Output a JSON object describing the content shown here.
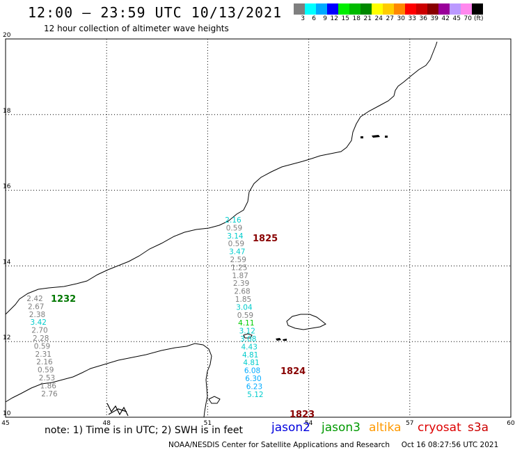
{
  "title": "12:00 – 23:59 UTC 10/13/2021",
  "subtitle": "12 hour collection of altimeter wave heights",
  "scale": {
    "colors": [
      "#7f7f7f",
      "#00ffff",
      "#00aaff",
      "#0000ff",
      "#00ee00",
      "#00bb00",
      "#008800",
      "#ffff00",
      "#ffcc00",
      "#ff8800",
      "#ff0000",
      "#cc0000",
      "#880000",
      "#990099",
      "#bb99ff",
      "#ff88ee",
      "#000000"
    ],
    "labels": [
      "3",
      "6",
      "9",
      "12",
      "15",
      "18",
      "21",
      "24",
      "27",
      "30",
      "33",
      "36",
      "39",
      "42",
      "45",
      "70"
    ],
    "unit": "(ft)"
  },
  "axes": {
    "x_ticks": [
      "45",
      "48",
      "51",
      "54",
      "57",
      "60"
    ],
    "y_ticks": [
      "20",
      "18",
      "16",
      "14",
      "12",
      "10"
    ]
  },
  "tracks": [
    {
      "name": "track-east",
      "label": "1825",
      "label_color": "#880000",
      "points": [
        {
          "v": "2.16",
          "c": "#00cccc"
        },
        {
          "v": "0.59",
          "c": "#7f7f7f"
        },
        {
          "v": "3.14",
          "c": "#00cccc"
        },
        {
          "v": "0.59",
          "c": "#7f7f7f"
        },
        {
          "v": "3.47",
          "c": "#00cccc"
        },
        {
          "v": "2.59",
          "c": "#7f7f7f"
        },
        {
          "v": "1.25",
          "c": "#7f7f7f"
        },
        {
          "v": "1.87",
          "c": "#7f7f7f"
        },
        {
          "v": "2.39",
          "c": "#7f7f7f"
        },
        {
          "v": "2.68",
          "c": "#7f7f7f"
        },
        {
          "v": "1.85",
          "c": "#7f7f7f"
        },
        {
          "v": "3.04",
          "c": "#00cccc"
        },
        {
          "v": "0.59",
          "c": "#7f7f7f"
        },
        {
          "v": "4.11",
          "c": "#00cc00"
        },
        {
          "v": "3.12",
          "c": "#00cccc"
        },
        {
          "v": "3.08",
          "c": "#00cccc"
        },
        {
          "v": "4.43",
          "c": "#00cccc"
        },
        {
          "v": "4.81",
          "c": "#00cccc"
        },
        {
          "v": "4.81",
          "c": "#00cccc"
        },
        {
          "v": "6.08",
          "c": "#00aaff"
        },
        {
          "v": "6.30",
          "c": "#00aaff"
        },
        {
          "v": "6.23",
          "c": "#00aaff"
        },
        {
          "v": "5.12",
          "c": "#00cccc"
        }
      ]
    },
    {
      "name": "track-west",
      "label": "1232",
      "label_color": "#007700",
      "points": [
        {
          "v": "2.42",
          "c": "#7f7f7f"
        },
        {
          "v": "2.67",
          "c": "#7f7f7f"
        },
        {
          "v": "2.38",
          "c": "#7f7f7f"
        },
        {
          "v": "3.42",
          "c": "#00cccc"
        },
        {
          "v": "2.70",
          "c": "#7f7f7f"
        },
        {
          "v": "2.28",
          "c": "#7f7f7f"
        },
        {
          "v": "0.59",
          "c": "#7f7f7f"
        },
        {
          "v": "2.31",
          "c": "#7f7f7f"
        },
        {
          "v": "2.16",
          "c": "#7f7f7f"
        },
        {
          "v": "0.59",
          "c": "#7f7f7f"
        },
        {
          "v": "2.53",
          "c": "#7f7f7f"
        },
        {
          "v": "1.86",
          "c": "#7f7f7f"
        },
        {
          "v": "2.76",
          "c": "#7f7f7f"
        }
      ]
    }
  ],
  "time_labels": [
    {
      "text": "1824",
      "color": "#880000"
    },
    {
      "text": "1823",
      "color": "#880000"
    }
  ],
  "note": "note:  1) Time is in UTC;  2) SWH is in feet",
  "satellites": [
    {
      "name": "jason2",
      "color": "#0000dd"
    },
    {
      "name": "jason3",
      "color": "#009900"
    },
    {
      "name": "altika",
      "color": "#ff9900"
    },
    {
      "name": "cryosat",
      "color": "#dd0000"
    },
    {
      "name": "s3a",
      "color": "#cc0000"
    }
  ],
  "source": "NOAA/NESDIS Center for Satellite Applications and Research",
  "timestamp": "Oct 16 08:27:56 UTC 2021"
}
